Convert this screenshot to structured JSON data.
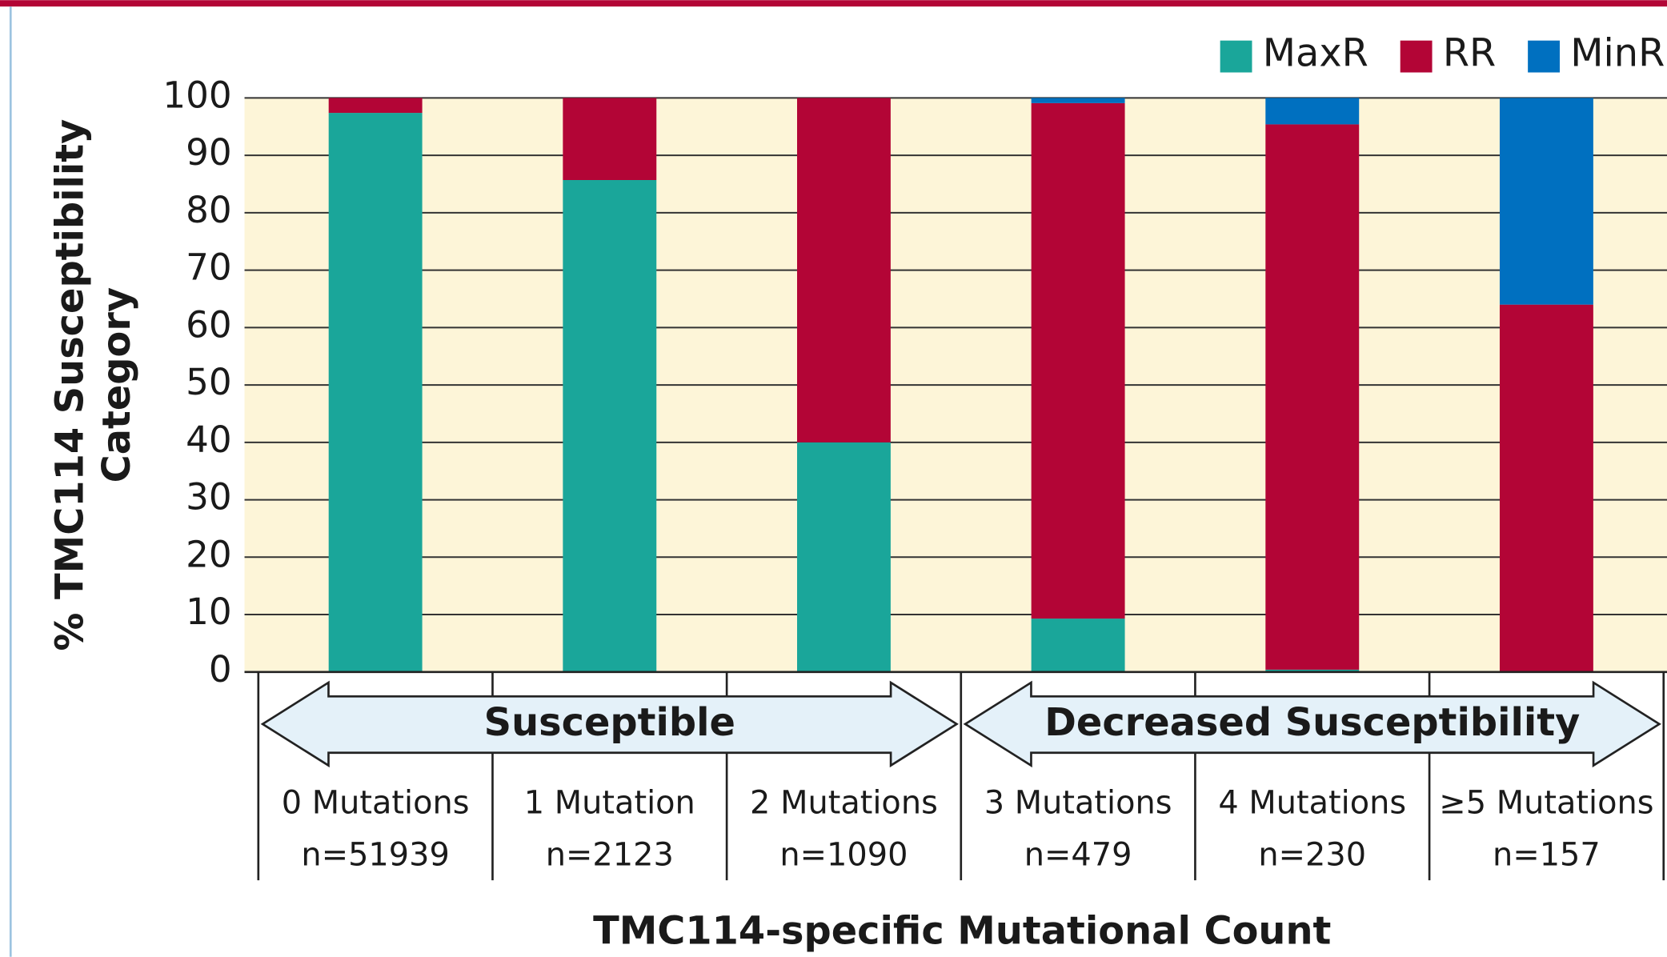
{
  "chart_data": {
    "type": "stacked_bar",
    "x_label": "TMC114-specific Mutational Count",
    "y_label": [
      "% TMC114 Susceptibility",
      "Category"
    ],
    "categories": [
      "0 Mutations",
      "1 Mutation",
      "2 Mutations",
      "3 Mutations",
      "4 Mutations",
      "≥5 Mutations"
    ],
    "n_labels": [
      "n=51939",
      "n=2123",
      "n=1090",
      "n=479",
      "n=230",
      "n=157"
    ],
    "groups": [
      {
        "name": "Susceptible",
        "span": 3
      },
      {
        "name": "Decreased Susceptibility",
        "span": 3
      }
    ],
    "series": [
      {
        "name": "MaxR",
        "color": "#1aa69a",
        "values": [
          97.4,
          85.7,
          40,
          9.3,
          0.4,
          0
        ]
      },
      {
        "name": "RR",
        "color": "#b30536",
        "values": [
          2.6,
          14.3,
          60,
          89.8,
          95,
          64
        ]
      },
      {
        "name": "MinR",
        "color": "#0070c0",
        "values": [
          0,
          0,
          0,
          0.9,
          4.6,
          36
        ]
      }
    ],
    "ylim": [
      0,
      100
    ],
    "yticks": [
      0,
      10,
      20,
      30,
      40,
      50,
      60,
      70,
      80,
      90,
      100
    ],
    "grid": true
  }
}
